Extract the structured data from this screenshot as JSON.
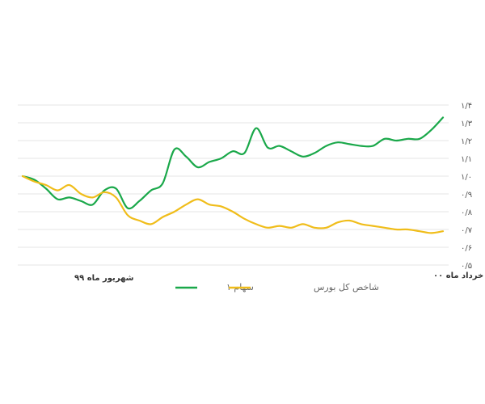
{
  "chart_data": {
    "type": "line",
    "x_labels": [
      "شهریور ماه ۹۹",
      "خرداد ماه ۰۰"
    ],
    "y_tick_labels": [
      "۰/۵",
      "۰/۶",
      "۰/۷",
      "۰/۸",
      "۰/۹",
      "۱/۰",
      "۱/۱",
      "۱/۲",
      "۱/۳",
      "۱/۴"
    ],
    "y_ticks": [
      0.5,
      0.6,
      0.7,
      0.8,
      0.9,
      1.0,
      1.1,
      1.2,
      1.3,
      1.4
    ],
    "ylim": [
      0.5,
      1.4
    ],
    "grid": true,
    "legend_position": "bottom",
    "series": [
      {
        "name": "سهام ۱",
        "color": "#1aa84a",
        "values": [
          1.0,
          0.98,
          0.93,
          0.87,
          0.88,
          0.86,
          0.84,
          0.92,
          0.93,
          0.82,
          0.86,
          0.92,
          0.96,
          1.15,
          1.11,
          1.05,
          1.08,
          1.1,
          1.14,
          1.13,
          1.27,
          1.16,
          1.17,
          1.14,
          1.11,
          1.13,
          1.17,
          1.19,
          1.18,
          1.17,
          1.17,
          1.21,
          1.2,
          1.21,
          1.21,
          1.26,
          1.33
        ]
      },
      {
        "name": "شاخص کل بورس",
        "color": "#f0bd1a",
        "values": [
          1.0,
          0.97,
          0.95,
          0.92,
          0.95,
          0.9,
          0.88,
          0.91,
          0.88,
          0.78,
          0.75,
          0.73,
          0.77,
          0.8,
          0.84,
          0.87,
          0.84,
          0.83,
          0.8,
          0.76,
          0.73,
          0.71,
          0.72,
          0.71,
          0.73,
          0.71,
          0.71,
          0.74,
          0.75,
          0.73,
          0.72,
          0.71,
          0.7,
          0.7,
          0.69,
          0.68,
          0.69
        ]
      }
    ]
  }
}
